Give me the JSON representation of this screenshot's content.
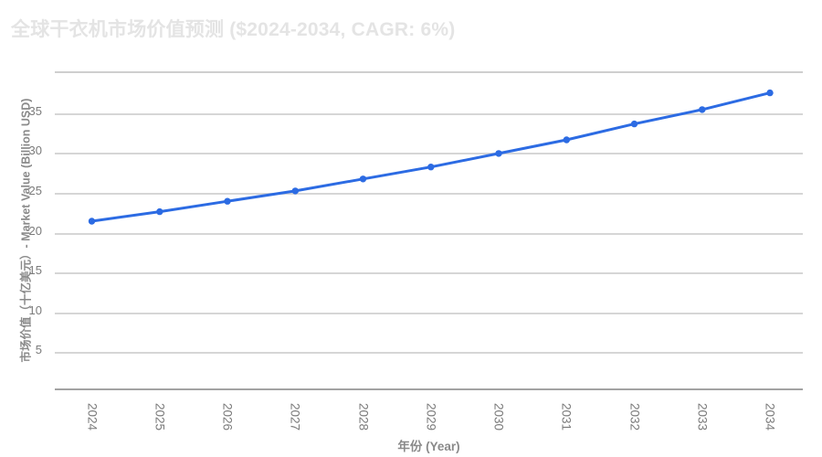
{
  "chart": {
    "title": "全球干衣机市场价值预测 ($2024-2034, CAGR: 6%)",
    "y_axis_title": "市场价值（十亿美元）- Market Value (Billion USD)",
    "x_axis_title": "年份 (Year)"
  },
  "chart_data": {
    "type": "line",
    "title": "全球干衣机市场价值预测 ($2024-2034, CAGR: 6%)",
    "xlabel": "年份 (Year)",
    "ylabel": "市场价值（十亿美元）- Market Value (Billion USD)",
    "categories": [
      "2024",
      "2025",
      "2026",
      "2027",
      "2028",
      "2029",
      "2030",
      "2031",
      "2032",
      "2033",
      "2034"
    ],
    "values": [
      21.2,
      22.4,
      23.7,
      25.0,
      26.5,
      28.0,
      29.7,
      31.4,
      33.4,
      35.2,
      37.3
    ],
    "cagr_percent": 6,
    "ylim": [
      0,
      40
    ],
    "ytick_step": 5,
    "ytick_labels": [
      "5",
      "10",
      "15",
      "20",
      "25",
      "30",
      "35"
    ],
    "x_tick_rotation": 90,
    "grid": true,
    "legend": "none",
    "markers": true
  },
  "colors": {
    "line": "#2c6be3",
    "marker": "#2c6be3",
    "grid": "#d6d6d6",
    "axis_line": "#a3a3a3",
    "tick_label": "#7b7b7b",
    "axis_title": "#8a8a8a",
    "title": "#e4e4e4",
    "background": "#ffffff"
  }
}
